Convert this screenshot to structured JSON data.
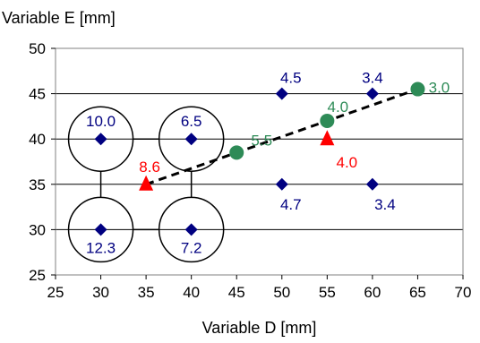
{
  "chart_data": {
    "type": "scatter",
    "xlabel": "Variable D [mm]",
    "ylabel": "Variable E [mm]",
    "xlim": [
      25,
      70
    ],
    "ylim": [
      25,
      50
    ],
    "x_ticks": [
      "25",
      "30",
      "35",
      "40",
      "45",
      "50",
      "55",
      "60",
      "65",
      "70"
    ],
    "y_ticks": [
      "25",
      "30",
      "35",
      "40",
      "45",
      "50"
    ],
    "grid": "horizontal",
    "legend": "none",
    "series": [
      {
        "marker": "diamond",
        "color": "#000080",
        "points": [
          {
            "x": 30,
            "y": 40,
            "label": "10.0"
          },
          {
            "x": 40,
            "y": 40,
            "label": "6.5"
          },
          {
            "x": 30,
            "y": 30,
            "label": "12.3"
          },
          {
            "x": 40,
            "y": 30,
            "label": "7.2"
          },
          {
            "x": 50,
            "y": 45,
            "label": "4.5"
          },
          {
            "x": 60,
            "y": 45,
            "label": "3.4"
          },
          {
            "x": 50,
            "y": 35,
            "label": "4.7"
          },
          {
            "x": 60,
            "y": 35,
            "label": "3.4"
          }
        ]
      },
      {
        "marker": "triangle",
        "color": "#ff0000",
        "points": [
          {
            "x": 35,
            "y": 35,
            "label": "8.6"
          },
          {
            "x": 55,
            "y": 40,
            "label": "4.0"
          }
        ]
      },
      {
        "marker": "circle",
        "color": "#2e8b57",
        "points": [
          {
            "x": 45,
            "y": 38.5,
            "label": "5.5"
          },
          {
            "x": 55,
            "y": 42,
            "label": "4.0"
          },
          {
            "x": 65,
            "y": 45.5,
            "label": "3.0"
          }
        ]
      }
    ],
    "path_line": {
      "style": "dashed",
      "color": "#000000",
      "points": [
        [
          35,
          35
        ],
        [
          45,
          38.5
        ],
        [
          55,
          42
        ],
        [
          65,
          45.5
        ]
      ]
    },
    "annotations": {
      "circled_points": [
        [
          30,
          40
        ],
        [
          40,
          40
        ],
        [
          30,
          30
        ],
        [
          40,
          30
        ]
      ],
      "connectors": [
        [
          [
            30,
            40
          ],
          [
            30,
            30
          ]
        ],
        [
          [
            40,
            40
          ],
          [
            40,
            30
          ]
        ],
        [
          [
            30,
            40
          ],
          [
            40,
            40
          ]
        ],
        [
          [
            30,
            30
          ],
          [
            40,
            30
          ]
        ]
      ]
    }
  }
}
